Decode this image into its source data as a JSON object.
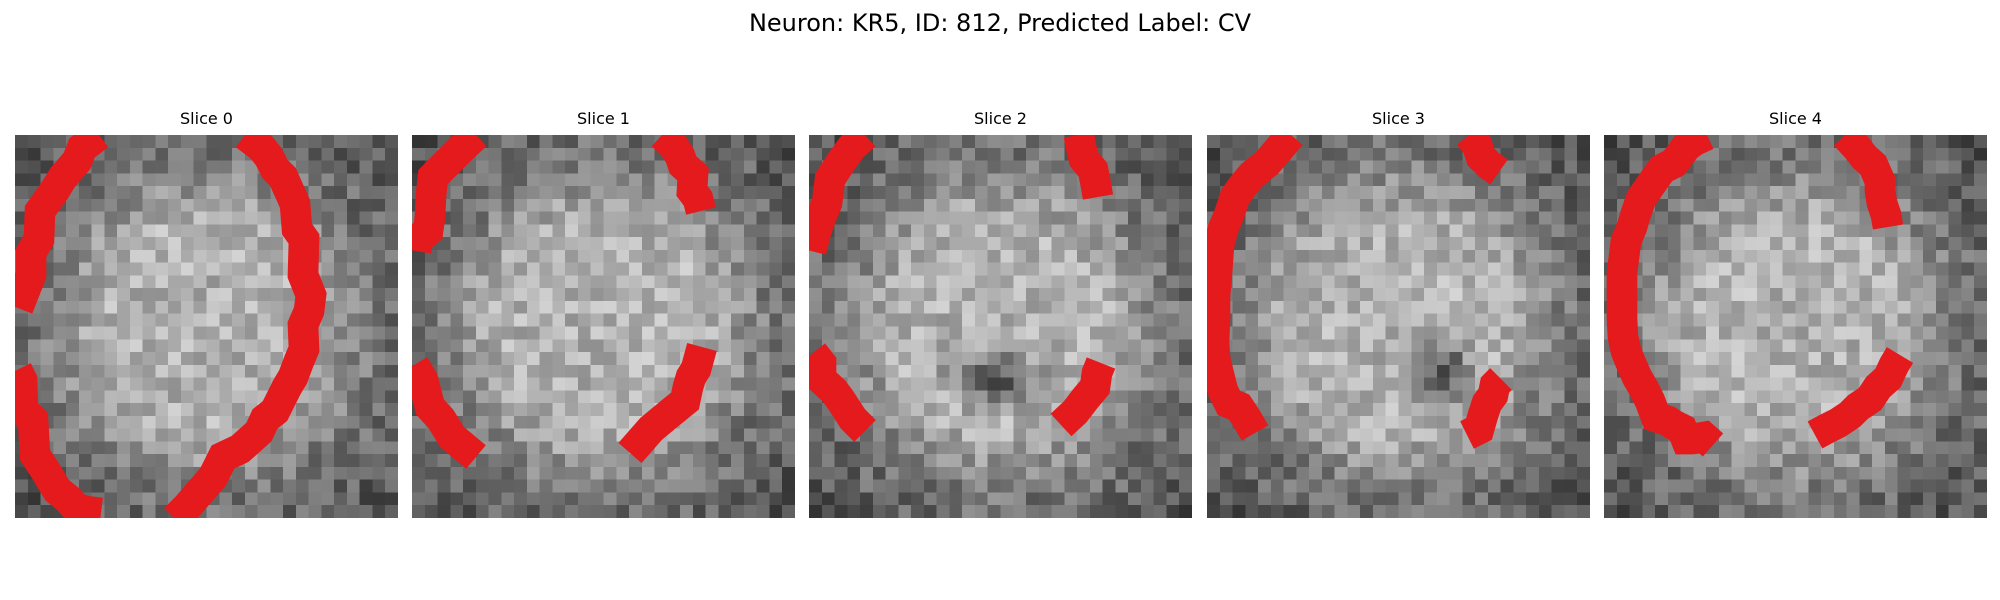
{
  "figure": {
    "title": "Neuron: KR5, ID: 812, Predicted Label: CV"
  },
  "image_content": {
    "grid_size": 30,
    "colormap": "gray",
    "contour_color": "#e41a1c"
  },
  "panels": [
    {
      "title": "Slice 0",
      "seed": 11,
      "dark_spot": null
    },
    {
      "title": "Slice 1",
      "seed": 23,
      "dark_spot": null
    },
    {
      "title": "Slice 2",
      "seed": 37,
      "dark_spot": {
        "cx": 14.5,
        "cy": 19.0,
        "rx": 3.2,
        "ry": 2.0
      }
    },
    {
      "title": "Slice 3",
      "seed": 41,
      "dark_spot": {
        "cx": 18.5,
        "cy": 18.5,
        "rx": 2.2,
        "ry": 2.8
      }
    },
    {
      "title": "Slice 4",
      "seed": 53,
      "dark_spot": null
    }
  ]
}
